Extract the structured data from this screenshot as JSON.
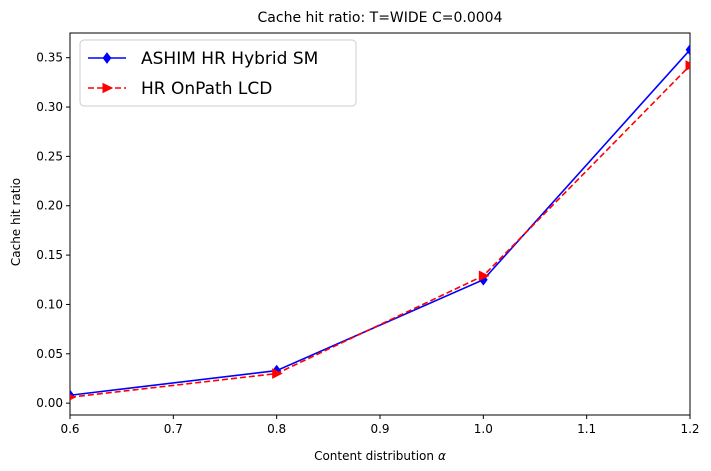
{
  "chart_data": {
    "type": "line",
    "title": "Cache hit ratio: T=WIDE C=0.0004",
    "xlabel": "Content distribution",
    "xlabel_symbol": "α",
    "ylabel": "Cache hit ratio",
    "x": [
      0.6,
      0.8,
      1.0,
      1.2
    ],
    "xlim": [
      0.6,
      1.2
    ],
    "ylim": [
      -0.012,
      0.375
    ],
    "xticks": [
      0.6,
      0.7,
      0.8,
      0.9,
      1.0,
      1.1,
      1.2
    ],
    "xtick_labels": [
      "0.6",
      "0.7",
      "0.8",
      "0.9",
      "1.0",
      "1.1",
      "1.2"
    ],
    "yticks": [
      0.0,
      0.05,
      0.1,
      0.15,
      0.2,
      0.25,
      0.3,
      0.35
    ],
    "ytick_labels": [
      "0.00",
      "0.05",
      "0.10",
      "0.15",
      "0.20",
      "0.25",
      "0.30",
      "0.35"
    ],
    "legend_position": "top-left",
    "grid": false,
    "series": [
      {
        "name": "ASHIM HR Hybrid SM",
        "values": [
          0.008,
          0.033,
          0.125,
          0.358
        ],
        "color": "#0000ff",
        "line_style": "solid",
        "marker": "diamond"
      },
      {
        "name": "HR OnPath LCD",
        "values": [
          0.006,
          0.03,
          0.129,
          0.342
        ],
        "color": "#ff0000",
        "line_style": "dashed",
        "marker": "triangle-right"
      }
    ]
  }
}
